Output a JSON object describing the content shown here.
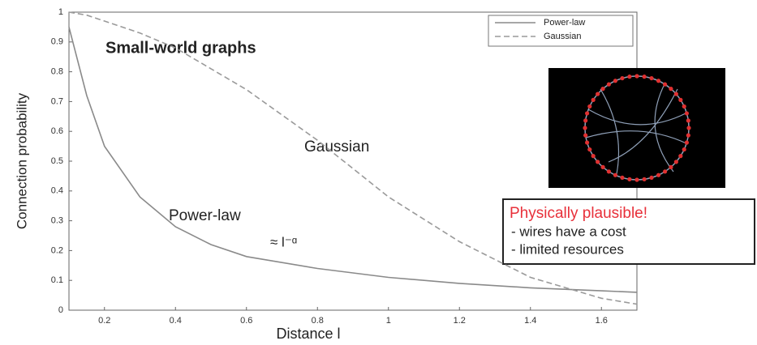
{
  "chart_data": {
    "type": "line",
    "x": [
      0.1,
      0.15,
      0.2,
      0.3,
      0.4,
      0.5,
      0.6,
      0.8,
      1.0,
      1.2,
      1.4,
      1.6,
      1.7
    ],
    "series": [
      {
        "name": "Power-law",
        "color": "#8a8a8a",
        "line_style": "solid",
        "values": [
          0.95,
          0.72,
          0.55,
          0.38,
          0.28,
          0.22,
          0.18,
          0.14,
          0.11,
          0.09,
          0.075,
          0.065,
          0.06
        ]
      },
      {
        "name": "Gaussian",
        "color": "#9a9a9a",
        "line_style": "dashed",
        "values": [
          1.0,
          0.99,
          0.97,
          0.93,
          0.88,
          0.81,
          0.74,
          0.57,
          0.38,
          0.23,
          0.11,
          0.04,
          0.02
        ]
      }
    ],
    "xlim": [
      0.1,
      1.7
    ],
    "ylim": [
      0,
      1
    ],
    "xticks": [
      0.2,
      0.4,
      0.6,
      0.8,
      1,
      1.2,
      1.4,
      1.6
    ],
    "yticks": [
      0,
      0.1,
      0.2,
      0.3,
      0.4,
      0.5,
      0.6,
      0.7,
      0.8,
      0.9,
      1
    ],
    "x_label": "Distance l",
    "y_label": "Connection probability",
    "legend": "top-right",
    "annotations": [
      "Small-world graphs",
      "Gaussian",
      "Power-law",
      "≈ l⁻ᵅ"
    ],
    "callout": {
      "title": "Physically plausible!",
      "items": [
        "- wires have a cost",
        "- limited resources"
      ]
    }
  }
}
